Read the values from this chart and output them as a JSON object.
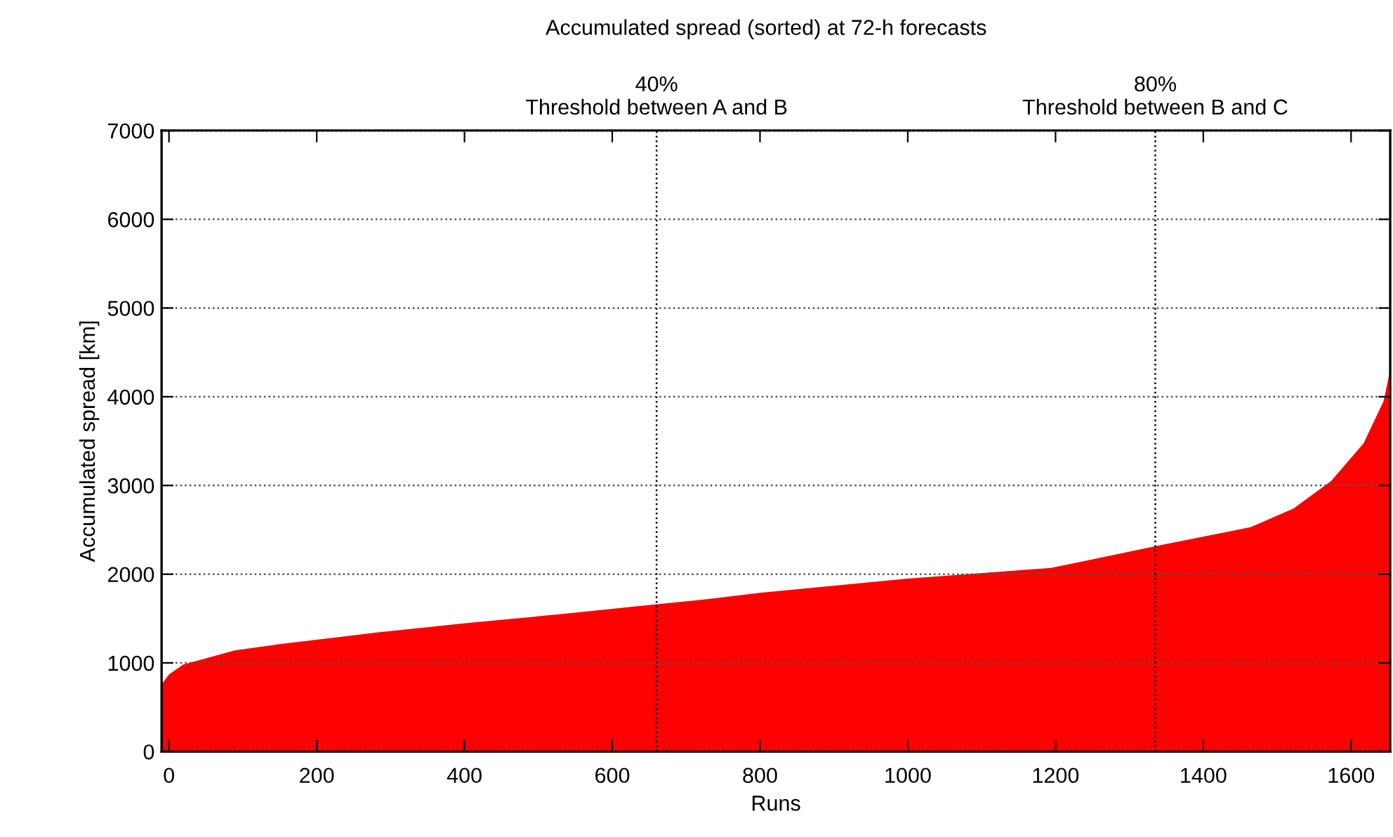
{
  "chart_data": {
    "type": "area",
    "title": "Accumulated spread (sorted) at 72-h forecasts",
    "xlabel": "Runs",
    "ylabel": "Accumulated spread [km]",
    "x": [
      -10,
      0,
      19,
      89,
      152,
      279,
      404,
      531,
      658,
      720,
      800,
      1000,
      1194,
      1338,
      1464,
      1522,
      1573,
      1617,
      1644,
      1653
    ],
    "series": [
      {
        "color": "#ff0000",
        "values": [
          760,
          870,
          980,
          1140,
          1215,
          1340,
          1450,
          1550,
          1660,
          1710,
          1790,
          1950,
          2070,
          2320,
          2530,
          2740,
          3050,
          3475,
          3950,
          4300
        ]
      }
    ],
    "xlim": [
      -10,
      1653
    ],
    "xticks": [
      0,
      200,
      400,
      600,
      800,
      1000,
      1200,
      1400,
      1600
    ],
    "ylim": [
      0,
      7000
    ],
    "yticks": [
      0,
      1000,
      2000,
      3000,
      4000,
      5000,
      6000,
      7000
    ],
    "grid": "y",
    "ref_lines": [
      {
        "axis": "x",
        "value": 660,
        "label": "40%\nThreshold between A and B",
        "color": "#000000",
        "line_style": "dotted"
      },
      {
        "axis": "x",
        "value": 1335,
        "label": "80%\nThreshold between B and C",
        "color": "#000000",
        "line_style": "dotted"
      }
    ]
  }
}
